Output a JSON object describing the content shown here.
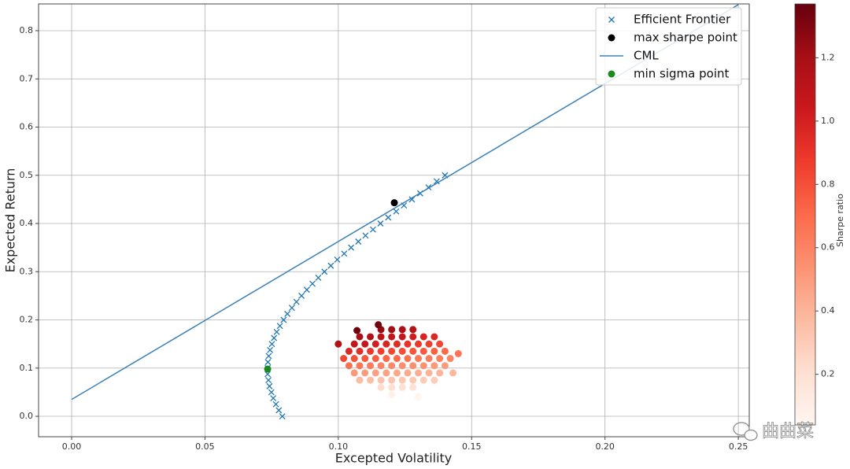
{
  "chart_data": {
    "type": "scatter",
    "xlabel": "Excepted Volatility",
    "ylabel": "Expected Return",
    "xlim": [
      -0.0124,
      0.2541
    ],
    "ylim": [
      -0.0424,
      0.8555
    ],
    "xticks": [
      {
        "value": 0,
        "label": "0.00"
      },
      {
        "value": 0.05,
        "label": "0.05"
      },
      {
        "value": 0.1,
        "label": "0.10"
      },
      {
        "value": 0.15,
        "label": "0.15"
      },
      {
        "value": 0.2,
        "label": "0.20"
      },
      {
        "value": 0.25,
        "label": "0.25"
      }
    ],
    "yticks": [
      {
        "value": 0,
        "label": "0.0"
      },
      {
        "value": 0.1,
        "label": "0.1"
      },
      {
        "value": 0.2,
        "label": "0.2"
      },
      {
        "value": 0.3,
        "label": "0.3"
      },
      {
        "value": 0.4,
        "label": "0.4"
      },
      {
        "value": 0.5,
        "label": "0.5"
      },
      {
        "value": 0.6,
        "label": "0.6"
      },
      {
        "value": 0.7,
        "label": "0.7"
      },
      {
        "value": 0.8,
        "label": "0.8"
      }
    ],
    "grid": true,
    "legend": "upper right",
    "colormap": "Reds",
    "colorbar_label": "Sharpe ratio",
    "clim": [
      0.04,
      1.37
    ],
    "cticks": [
      0.2,
      0.4,
      0.6,
      0.8,
      {
        "value": 1,
        "label": "1.0"
      },
      1.2
    ],
    "portfolios": {
      "x": [
        0.116,
        0.12,
        0.124,
        0.128,
        0.108,
        0.112,
        0.116,
        0.12,
        0.124,
        0.128,
        0.132,
        0.136,
        0.106,
        0.11,
        0.114,
        0.118,
        0.122,
        0.126,
        0.13,
        0.134,
        0.138,
        0.104,
        0.108,
        0.112,
        0.116,
        0.12,
        0.124,
        0.128,
        0.132,
        0.136,
        0.14,
        0.102,
        0.106,
        0.11,
        0.114,
        0.118,
        0.122,
        0.126,
        0.13,
        0.134,
        0.138,
        0.142,
        0.104,
        0.108,
        0.112,
        0.116,
        0.12,
        0.124,
        0.128,
        0.132,
        0.136,
        0.14,
        0.106,
        0.11,
        0.114,
        0.118,
        0.122,
        0.126,
        0.13,
        0.134,
        0.138,
        0.108,
        0.112,
        0.116,
        0.12,
        0.124,
        0.128,
        0.132,
        0.136,
        0.116,
        0.12,
        0.124,
        0.128,
        0.145,
        0.143,
        0.1,
        0.115,
        0.107,
        0.12,
        0.13
      ],
      "y": [
        0.06,
        0.06,
        0.06,
        0.06,
        0.075,
        0.075,
        0.075,
        0.075,
        0.075,
        0.075,
        0.075,
        0.075,
        0.09,
        0.09,
        0.09,
        0.09,
        0.09,
        0.09,
        0.09,
        0.09,
        0.09,
        0.105,
        0.105,
        0.105,
        0.105,
        0.105,
        0.105,
        0.105,
        0.105,
        0.105,
        0.105,
        0.12,
        0.12,
        0.12,
        0.12,
        0.12,
        0.12,
        0.12,
        0.12,
        0.12,
        0.12,
        0.12,
        0.135,
        0.135,
        0.135,
        0.135,
        0.135,
        0.135,
        0.135,
        0.135,
        0.135,
        0.135,
        0.15,
        0.15,
        0.15,
        0.15,
        0.15,
        0.15,
        0.15,
        0.15,
        0.15,
        0.165,
        0.165,
        0.165,
        0.165,
        0.165,
        0.165,
        0.165,
        0.165,
        0.18,
        0.18,
        0.18,
        0.18,
        0.13,
        0.09,
        0.15,
        0.19,
        0.178,
        0.045,
        0.04
      ],
      "c": [
        0.22,
        0.21,
        0.2,
        0.2,
        0.37,
        0.36,
        0.34,
        0.33,
        0.32,
        0.31,
        0.3,
        0.29,
        0.52,
        0.5,
        0.48,
        0.47,
        0.45,
        0.44,
        0.42,
        0.41,
        0.4,
        0.67,
        0.65,
        0.63,
        0.6,
        0.58,
        0.56,
        0.55,
        0.53,
        0.51,
        0.5,
        0.83,
        0.8,
        0.77,
        0.75,
        0.72,
        0.7,
        0.67,
        0.65,
        0.63,
        0.62,
        0.6,
        0.96,
        0.93,
        0.89,
        0.86,
        0.83,
        0.81,
        0.78,
        0.76,
        0.74,
        0.71,
        1.08,
        1.05,
        1.01,
        0.97,
        0.94,
        0.91,
        0.88,
        0.86,
        0.83,
        1.2,
        1.16,
        1.12,
        1.08,
        1.05,
        1.02,
        0.98,
        0.96,
        1.25,
        1.21,
        1.17,
        1.13,
        0.66,
        0.38,
        1.15,
        1.35,
        1.34,
        0.08,
        0.04
      ]
    },
    "series": [
      {
        "name": "Efficient Frontier",
        "marker": "x",
        "color": "#1f77b4",
        "x": [
          0.079,
          0.0777,
          0.0766,
          0.0756,
          0.0749,
          0.0742,
          0.0738,
          0.0735,
          0.0735,
          0.0736,
          0.0739,
          0.0744,
          0.0751,
          0.0759,
          0.0769,
          0.0781,
          0.0795,
          0.0809,
          0.0826,
          0.0843,
          0.0862,
          0.0882,
          0.0903,
          0.0925,
          0.0948,
          0.0972,
          0.0996,
          0.1022,
          0.1048,
          0.1075,
          0.1102,
          0.113,
          0.1158,
          0.1187,
          0.1217,
          0.1246,
          0.1276,
          0.1307,
          0.1338,
          0.1369,
          0.14
        ],
        "y": [
          0,
          0.0125,
          0.025,
          0.0375,
          0.05,
          0.0625,
          0.075,
          0.0875,
          0.1,
          0.1125,
          0.125,
          0.1375,
          0.15,
          0.1625,
          0.175,
          0.1875,
          0.2,
          0.2125,
          0.225,
          0.2375,
          0.25,
          0.2625,
          0.275,
          0.2875,
          0.3,
          0.3125,
          0.325,
          0.3375,
          0.35,
          0.3625,
          0.375,
          0.3875,
          0.4,
          0.4125,
          0.425,
          0.4375,
          0.45,
          0.4625,
          0.475,
          0.4875,
          0.5
        ]
      },
      {
        "name": "max sharpe point",
        "marker": "o",
        "color": "#000000",
        "x": [
          0.121
        ],
        "y": [
          0.443
        ]
      },
      {
        "name": "CML",
        "marker": "line",
        "color": "#3a80b8",
        "x": [
          0,
          0.25
        ],
        "y": [
          0.035,
          0.854
        ]
      },
      {
        "name": "min sigma point",
        "marker": "o",
        "color": "#1a8a1a",
        "x": [
          0.0735
        ],
        "y": [
          0.098
        ]
      }
    ],
    "watermark": "曲曲菜"
  }
}
